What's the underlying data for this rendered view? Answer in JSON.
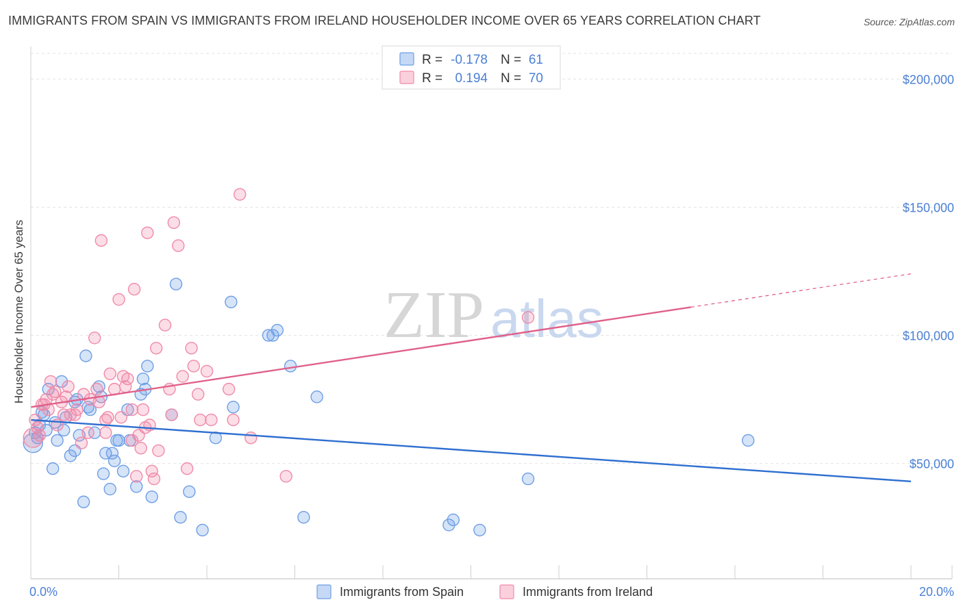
{
  "title": "IMMIGRANTS FROM SPAIN VS IMMIGRANTS FROM IRELAND HOUSEHOLDER INCOME OVER 65 YEARS CORRELATION CHART",
  "source": "Source: ZipAtlas.com",
  "watermark": {
    "zip": "ZIP",
    "atlas": "atlas"
  },
  "legend": {
    "r_label": "R =",
    "n_label": "N =",
    "rows": [
      {
        "r": "-0.178",
        "n": "61",
        "color": "#6d9ee6"
      },
      {
        "r": "0.194",
        "n": "70",
        "color": "#f08aa8"
      }
    ]
  },
  "chart_data": {
    "type": "scatter",
    "title": "IMMIGRANTS FROM SPAIN VS IMMIGRANTS FROM IRELAND HOUSEHOLDER INCOME OVER 65 YEARS CORRELATION CHART",
    "xlabel": "",
    "ylabel": "Householder Income Over 65 years",
    "xlim": [
      0,
      20
    ],
    "ylim": [
      5000,
      210000
    ],
    "x_tick_labels": [
      {
        "value": 0,
        "label": "0.0%"
      },
      {
        "value": 20,
        "label": "20.0%"
      }
    ],
    "y_ticks": [
      {
        "value": 50000,
        "label": "$50,000"
      },
      {
        "value": 100000,
        "label": "$100,000"
      },
      {
        "value": 150000,
        "label": "$150,000"
      },
      {
        "value": 200000,
        "label": "$200,000"
      }
    ],
    "series": [
      {
        "name": "Immigrants from Spain",
        "color": "#6d9ee6",
        "line_color": "#2f6fd0",
        "trend": {
          "x0": 0,
          "y0": 67000,
          "x1": 20,
          "y1": 43000
        },
        "points": [
          [
            0.1,
            62000
          ],
          [
            0.15,
            60000
          ],
          [
            0.2,
            65000
          ],
          [
            0.25,
            70000
          ],
          [
            0.3,
            69000
          ],
          [
            0.35,
            63000
          ],
          [
            0.4,
            79000
          ],
          [
            0.5,
            48000
          ],
          [
            0.55,
            66000
          ],
          [
            0.6,
            59000
          ],
          [
            0.7,
            82000
          ],
          [
            0.75,
            63000
          ],
          [
            0.8,
            68000
          ],
          [
            0.9,
            53000
          ],
          [
            1.0,
            74000
          ],
          [
            1.05,
            75000
          ],
          [
            1.1,
            61000
          ],
          [
            1.2,
            35000
          ],
          [
            1.25,
            92000
          ],
          [
            1.3,
            72000
          ],
          [
            1.35,
            71000
          ],
          [
            1.45,
            62000
          ],
          [
            1.55,
            80000
          ],
          [
            1.6,
            76000
          ],
          [
            1.65,
            46000
          ],
          [
            1.7,
            54000
          ],
          [
            1.8,
            40000
          ],
          [
            1.85,
            54000
          ],
          [
            1.9,
            51000
          ],
          [
            1.95,
            59000
          ],
          [
            2.0,
            59000
          ],
          [
            2.2,
            71000
          ],
          [
            2.25,
            59000
          ],
          [
            2.4,
            41000
          ],
          [
            2.5,
            77000
          ],
          [
            2.55,
            83000
          ],
          [
            2.6,
            79000
          ],
          [
            2.65,
            88000
          ],
          [
            2.75,
            37000
          ],
          [
            3.2,
            69000
          ],
          [
            3.3,
            120000
          ],
          [
            3.4,
            29000
          ],
          [
            3.6,
            39000
          ],
          [
            3.9,
            24000
          ],
          [
            4.2,
            60000
          ],
          [
            4.55,
            113000
          ],
          [
            4.6,
            72000
          ],
          [
            5.4,
            100000
          ],
          [
            5.5,
            100000
          ],
          [
            5.6,
            102000
          ],
          [
            5.9,
            88000
          ],
          [
            6.2,
            29000
          ],
          [
            6.5,
            76000
          ],
          [
            9.5,
            26000
          ],
          [
            9.6,
            28000
          ],
          [
            10.2,
            24000
          ],
          [
            11.3,
            44000
          ],
          [
            16.3,
            59000
          ],
          [
            0.05,
            58000
          ],
          [
            1.0,
            55000
          ],
          [
            2.1,
            47000
          ]
        ]
      },
      {
        "name": "Immigrants from Ireland",
        "color": "#f08aa8",
        "line_color": "#e0608a",
        "trend": {
          "x0": 0,
          "y0": 72000,
          "x1": 15,
          "y1": 111000,
          "dash_to_x": 20,
          "dash_to_y": 124000
        },
        "points": [
          [
            0.1,
            67000
          ],
          [
            0.15,
            64000
          ],
          [
            0.2,
            61000
          ],
          [
            0.25,
            73000
          ],
          [
            0.3,
            73000
          ],
          [
            0.35,
            75000
          ],
          [
            0.4,
            71000
          ],
          [
            0.45,
            82000
          ],
          [
            0.5,
            77000
          ],
          [
            0.55,
            78000
          ],
          [
            0.6,
            65000
          ],
          [
            0.7,
            74000
          ],
          [
            0.75,
            69000
          ],
          [
            0.85,
            80000
          ],
          [
            0.9,
            69000
          ],
          [
            1.0,
            69000
          ],
          [
            1.05,
            71000
          ],
          [
            1.15,
            58000
          ],
          [
            1.2,
            77000
          ],
          [
            1.3,
            62000
          ],
          [
            1.35,
            75000
          ],
          [
            1.45,
            99000
          ],
          [
            1.5,
            79000
          ],
          [
            1.55,
            74000
          ],
          [
            1.6,
            137000
          ],
          [
            1.7,
            67000
          ],
          [
            1.75,
            68000
          ],
          [
            1.8,
            85000
          ],
          [
            1.9,
            79000
          ],
          [
            2.0,
            114000
          ],
          [
            2.05,
            68000
          ],
          [
            2.1,
            84000
          ],
          [
            2.15,
            80000
          ],
          [
            2.2,
            83000
          ],
          [
            2.3,
            71000
          ],
          [
            2.35,
            118000
          ],
          [
            2.4,
            45000
          ],
          [
            2.45,
            61000
          ],
          [
            2.5,
            56000
          ],
          [
            2.55,
            71000
          ],
          [
            2.6,
            64000
          ],
          [
            2.65,
            140000
          ],
          [
            2.7,
            65000
          ],
          [
            2.75,
            47000
          ],
          [
            2.8,
            44000
          ],
          [
            2.85,
            95000
          ],
          [
            2.9,
            55000
          ],
          [
            3.05,
            104000
          ],
          [
            3.15,
            79000
          ],
          [
            3.2,
            69000
          ],
          [
            3.25,
            144000
          ],
          [
            3.35,
            135000
          ],
          [
            3.45,
            84000
          ],
          [
            3.55,
            48000
          ],
          [
            3.65,
            95000
          ],
          [
            3.7,
            88000
          ],
          [
            3.8,
            77000
          ],
          [
            3.85,
            67000
          ],
          [
            4.0,
            86000
          ],
          [
            4.1,
            67000
          ],
          [
            4.5,
            79000
          ],
          [
            4.6,
            67000
          ],
          [
            4.75,
            155000
          ],
          [
            5.0,
            60000
          ],
          [
            5.8,
            45000
          ],
          [
            11.3,
            107000
          ],
          [
            0.05,
            60000
          ],
          [
            0.8,
            76000
          ],
          [
            1.7,
            62000
          ],
          [
            2.3,
            59000
          ]
        ]
      }
    ]
  },
  "bottom_legend": [
    {
      "label": "Immigrants from Spain",
      "color": "#6d9ee6"
    },
    {
      "label": "Immigrants from Ireland",
      "color": "#f08aa8"
    }
  ]
}
